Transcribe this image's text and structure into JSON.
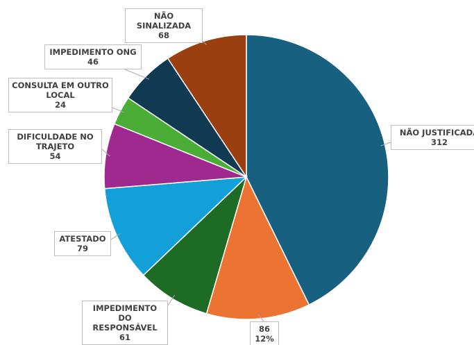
{
  "chart_data": {
    "type": "pie",
    "categories": [
      "NÃO JUSTIFICADA",
      null,
      "IMPEDIMENTO DO RESPONSÁVEL",
      "ATESTADO",
      "DIFICULDADE NO TRAJETO",
      "CONSULTA EM OUTRO LOCAL",
      "IMPEDIMENTO ONG",
      "NÃO SINALIZADA"
    ],
    "values": [
      312,
      86,
      61,
      79,
      54,
      24,
      46,
      68
    ],
    "percent_labels": [
      null,
      "12%",
      null,
      null,
      null,
      null,
      null,
      null
    ],
    "colors": [
      "#17607f",
      "#ec7432",
      "#1e6b25",
      "#13a0d8",
      "#a0298f",
      "#49ad36",
      "#0f3a52",
      "#9a3f0f"
    ]
  }
}
